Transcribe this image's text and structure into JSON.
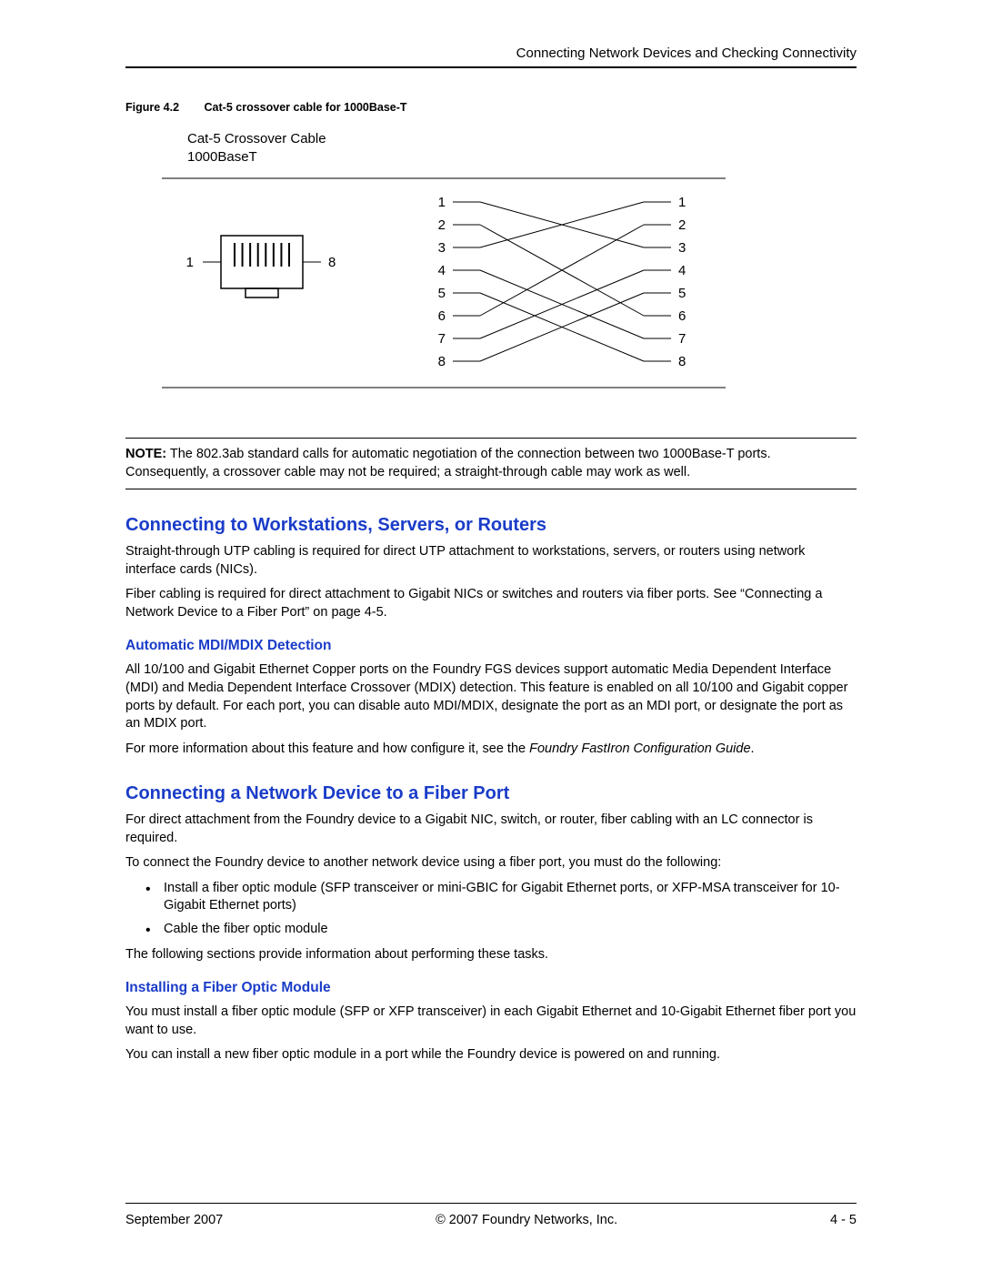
{
  "header": {
    "title": "Connecting Network Devices and Checking Connectivity"
  },
  "figure": {
    "label": "Figure 4.2",
    "caption": "Cat-5 crossover cable for 1000Base-T",
    "title_line1": "Cat-5 Crossover Cable",
    "title_line2": "1000BaseT",
    "connector": {
      "left_label": "1",
      "right_label": "8",
      "pin_count": 8
    },
    "pinmap": {
      "pins": [
        1,
        2,
        3,
        4,
        5,
        6,
        7,
        8
      ],
      "connections": [
        [
          1,
          3
        ],
        [
          2,
          6
        ],
        [
          3,
          1
        ],
        [
          4,
          7
        ],
        [
          5,
          8
        ],
        [
          6,
          2
        ],
        [
          7,
          4
        ],
        [
          8,
          5
        ]
      ],
      "line_color": "#000000",
      "line_width": 1,
      "font_size": 15
    },
    "rule_color": "#000000"
  },
  "note": {
    "label": "NOTE:",
    "text": "The 802.3ab standard calls for automatic negotiation of the connection between two 1000Base-T ports. Consequently, a crossover cable may not be required; a straight-through cable may work as well."
  },
  "sections": {
    "s1": {
      "heading": "Connecting to Workstations, Servers, or Routers",
      "p1": "Straight-through UTP cabling is required for direct UTP attachment to workstations, servers, or routers using network interface cards (NICs).",
      "p2": "Fiber cabling is required for direct attachment to Gigabit NICs or switches and routers via fiber ports.  See “Connecting a Network Device to a Fiber Port” on page 4-5.",
      "sub1": {
        "heading": "Automatic MDI/MDIX Detection",
        "p1": "All 10/100 and Gigabit Ethernet Copper ports on the Foundry FGS devices support automatic Media Dependent Interface (MDI) and Media Dependent Interface Crossover (MDIX) detection.  This feature is enabled on all 10/100 and Gigabit copper ports by default.  For each port, you can disable auto MDI/MDIX, designate the port as an MDI port, or designate the port as an MDIX port.",
        "p2_pre": "For more information about this feature and how configure it, see the ",
        "p2_ital": "Foundry FastIron Configuration Guide",
        "p2_post": "."
      }
    },
    "s2": {
      "heading": "Connecting a Network Device to a Fiber Port",
      "p1": "For direct attachment from the Foundry device to a Gigabit NIC, switch, or router, fiber cabling with an LC connector is required.",
      "p2": "To connect the Foundry device  to another network device using a fiber port, you must do the following:",
      "bullets": [
        "Install a fiber optic module (SFP transceiver or mini-GBIC for Gigabit Ethernet ports, or XFP-MSA transceiver for 10-Gigabit Ethernet ports)",
        "Cable the fiber optic module"
      ],
      "p3": "The following sections provide information about performing these tasks.",
      "sub1": {
        "heading": "Installing a Fiber Optic Module",
        "p1": "You must install a fiber optic module (SFP or XFP transceiver) in each Gigabit Ethernet and 10-Gigabit Ethernet fiber port you want to use.",
        "p2": "You can install a new fiber optic module in a port while the Foundry device is powered on and running."
      }
    }
  },
  "footer": {
    "left": "September 2007",
    "center": "© 2007 Foundry Networks, Inc.",
    "right": "4 - 5"
  },
  "colors": {
    "heading": "#1a3cc8",
    "text": "#000000",
    "rule": "#000000"
  }
}
